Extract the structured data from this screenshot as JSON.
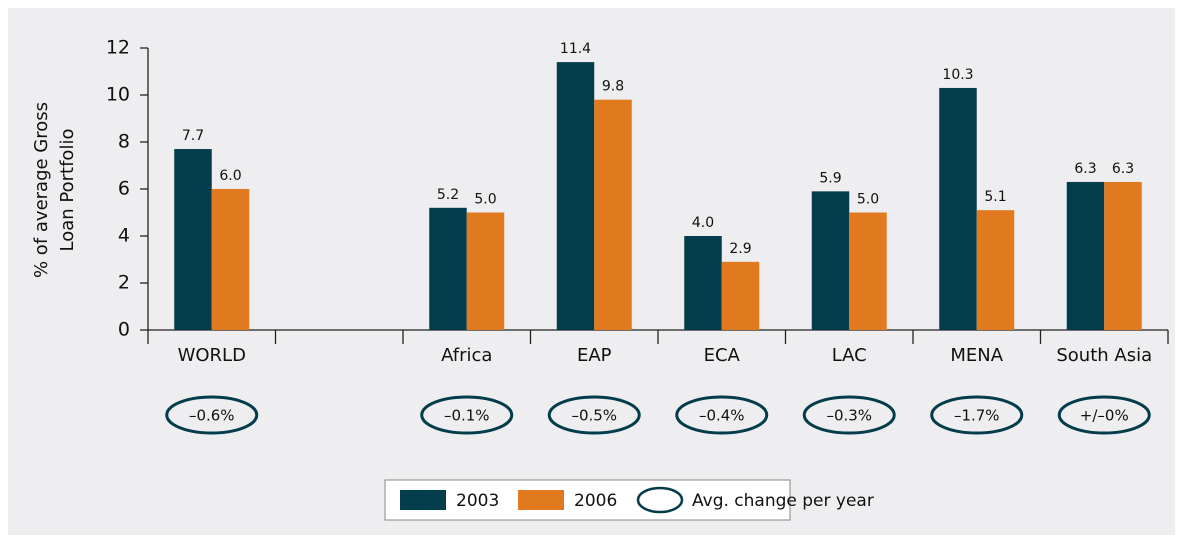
{
  "chart_data": {
    "type": "bar",
    "ylabel": [
      "% of average Gross",
      "Loan Portfolio"
    ],
    "categories": [
      "WORLD",
      null,
      "Africa",
      "EAP",
      "ECA",
      "LAC",
      "MENA",
      "South Asia"
    ],
    "series": [
      {
        "name": "2003",
        "color": "#033d4c",
        "values": [
          7.7,
          null,
          5.2,
          11.4,
          4.0,
          5.9,
          10.3,
          6.3
        ],
        "value_labels": [
          "7.7",
          null,
          "5.2",
          "11.4",
          "4.0",
          "5.9",
          "10.3",
          "6.3"
        ]
      },
      {
        "name": "2006",
        "color": "#e17a1e",
        "values": [
          6.0,
          null,
          5.0,
          9.8,
          2.9,
          5.0,
          5.1,
          6.3
        ],
        "value_labels": [
          "6.0",
          null,
          "5.0",
          "9.8",
          "2.9",
          "5.0",
          "5.1",
          "6.3"
        ]
      }
    ],
    "change_labels": [
      "–0.6%",
      null,
      "–0.1%",
      "–0.5%",
      "–0.4%",
      "–0.3%",
      "–1.7%",
      "+/–0%"
    ],
    "change_legend": "Avg. change per year",
    "ylim": [
      0,
      12
    ],
    "yticks": [
      0,
      2,
      4,
      6,
      8,
      10,
      12
    ],
    "grid": false
  }
}
